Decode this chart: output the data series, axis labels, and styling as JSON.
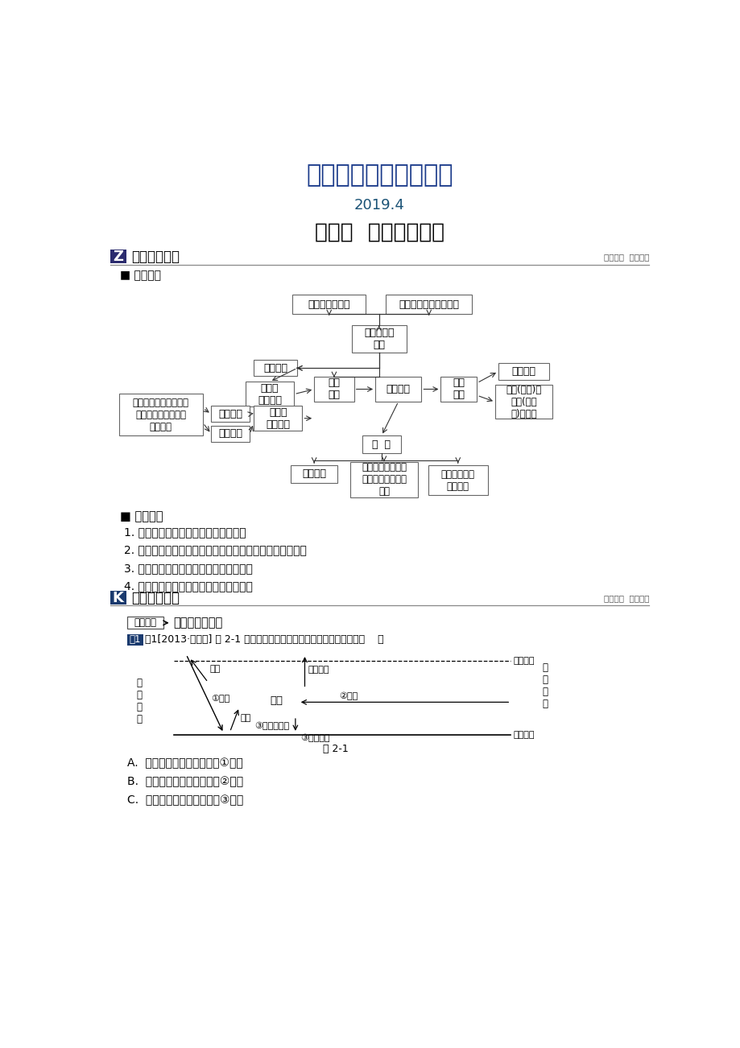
{
  "title1": "最新地理精品教学资料",
  "title2": "2019.4",
  "title3": "专题二  大气运动规律",
  "section1_icon": "Z",
  "section1_title": "专题体系构建",
  "section1_right": "体系构建  提纲掣领",
  "subsection1": "■ 搭建体系",
  "core_title": "■ 核心提炼",
  "core_items": [
    "1. 大气受热过程，热力环流及其影响。",
    "2. 全球气压带、风带的分布、移动规律及其对气候的影响。",
    "3. 锋面、低压、高压等天气系统的特点。",
    "4. 气候类型分布及全球气候变化的影响。"
  ],
  "section2_icon": "K",
  "section2_title": "考点归纳总结",
  "section2_right": "考点研析  遴法悟道",
  "topic_box": "命题点一",
  "topic_title": "大气的受热过程",
  "example_text": "例1[2013·北京卷] 图 2-1 为地球大气受热过程示意图。读图，大气中（    ）",
  "fig_label": "图 2-1",
  "answer_a": "A.  臭氧层遭到破坏，会导致①增加",
  "answer_b": "B.  二氧化碳浓度降低，会使②减少",
  "answer_c": "C.  可吸入颗粒物增加，会使③增加",
  "bg_color": "#ffffff",
  "title1_color": "#1a3a8a",
  "title2_color": "#1a5276",
  "box_border_color": "#666666",
  "section_icon_bg": "#2c2c6e",
  "arrow_color": "#333333"
}
